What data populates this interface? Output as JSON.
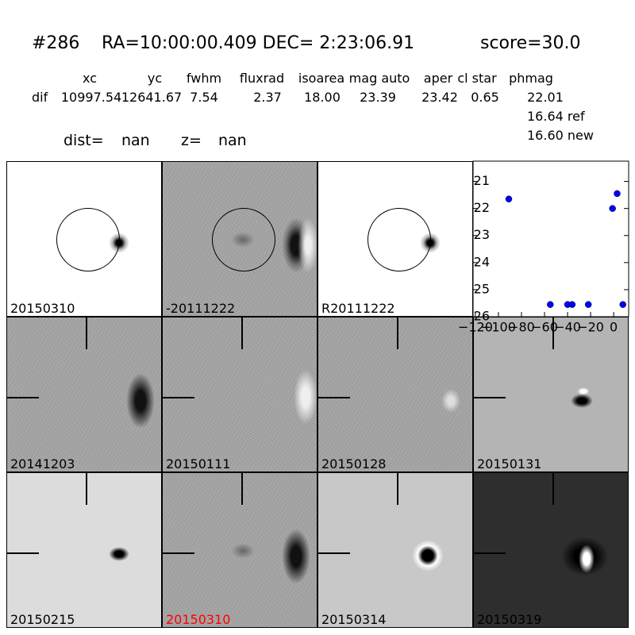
{
  "header": {
    "id": "#286",
    "coords": "RA=10:00:00.409 DEC= 2:23:06.91",
    "score": "score=30.0"
  },
  "table": {
    "columns": [
      "xc",
      "yc",
      "fwhm",
      "fluxrad",
      "isoarea",
      "mag auto",
      "aper",
      "cl star",
      "phmag"
    ],
    "row_label": "dif",
    "values": [
      "10997.54",
      "12641.67",
      "7.54",
      "2.37",
      "18.00",
      "23.39",
      "23.42",
      "0.65",
      "22.01"
    ],
    "extra": [
      "16.64 ref",
      "16.60 new"
    ]
  },
  "dist": {
    "dist_label": "dist=",
    "dist_value": "nan",
    "z_label": "z=",
    "z_value": "nan"
  },
  "panels": [
    {
      "label": "20150310"
    },
    {
      "label": "-20111222"
    },
    {
      "label": "R20111222"
    },
    {
      "label": "20141203"
    },
    {
      "label": "20150111"
    },
    {
      "label": "20150128"
    },
    {
      "label": "20150131"
    },
    {
      "label": "20150215"
    },
    {
      "label": "20150310",
      "color": "#ff0000"
    },
    {
      "label": "20150314"
    },
    {
      "label": "20150319"
    }
  ],
  "chart_data": {
    "type": "scatter",
    "color": "#0000ff",
    "x": [
      -91,
      -55,
      -40,
      -36,
      -22,
      -1,
      3,
      8
    ],
    "values": [
      21.65,
      25.55,
      25.55,
      25.55,
      25.55,
      22.0,
      21.45,
      25.55
    ],
    "xlim": [
      -122,
      13
    ],
    "ylim": [
      20.25,
      26
    ],
    "y_inverted": true,
    "xticks": [
      {
        "value": -120,
        "label": "−120"
      },
      {
        "value": -100,
        "label": "−100"
      },
      {
        "value": -80,
        "label": "−80"
      },
      {
        "value": -60,
        "label": "−60"
      },
      {
        "value": -40,
        "label": "−40"
      },
      {
        "value": -20,
        "label": "−20"
      },
      0
    ],
    "yticks": [
      21,
      22,
      23,
      24,
      25,
      26
    ]
  }
}
